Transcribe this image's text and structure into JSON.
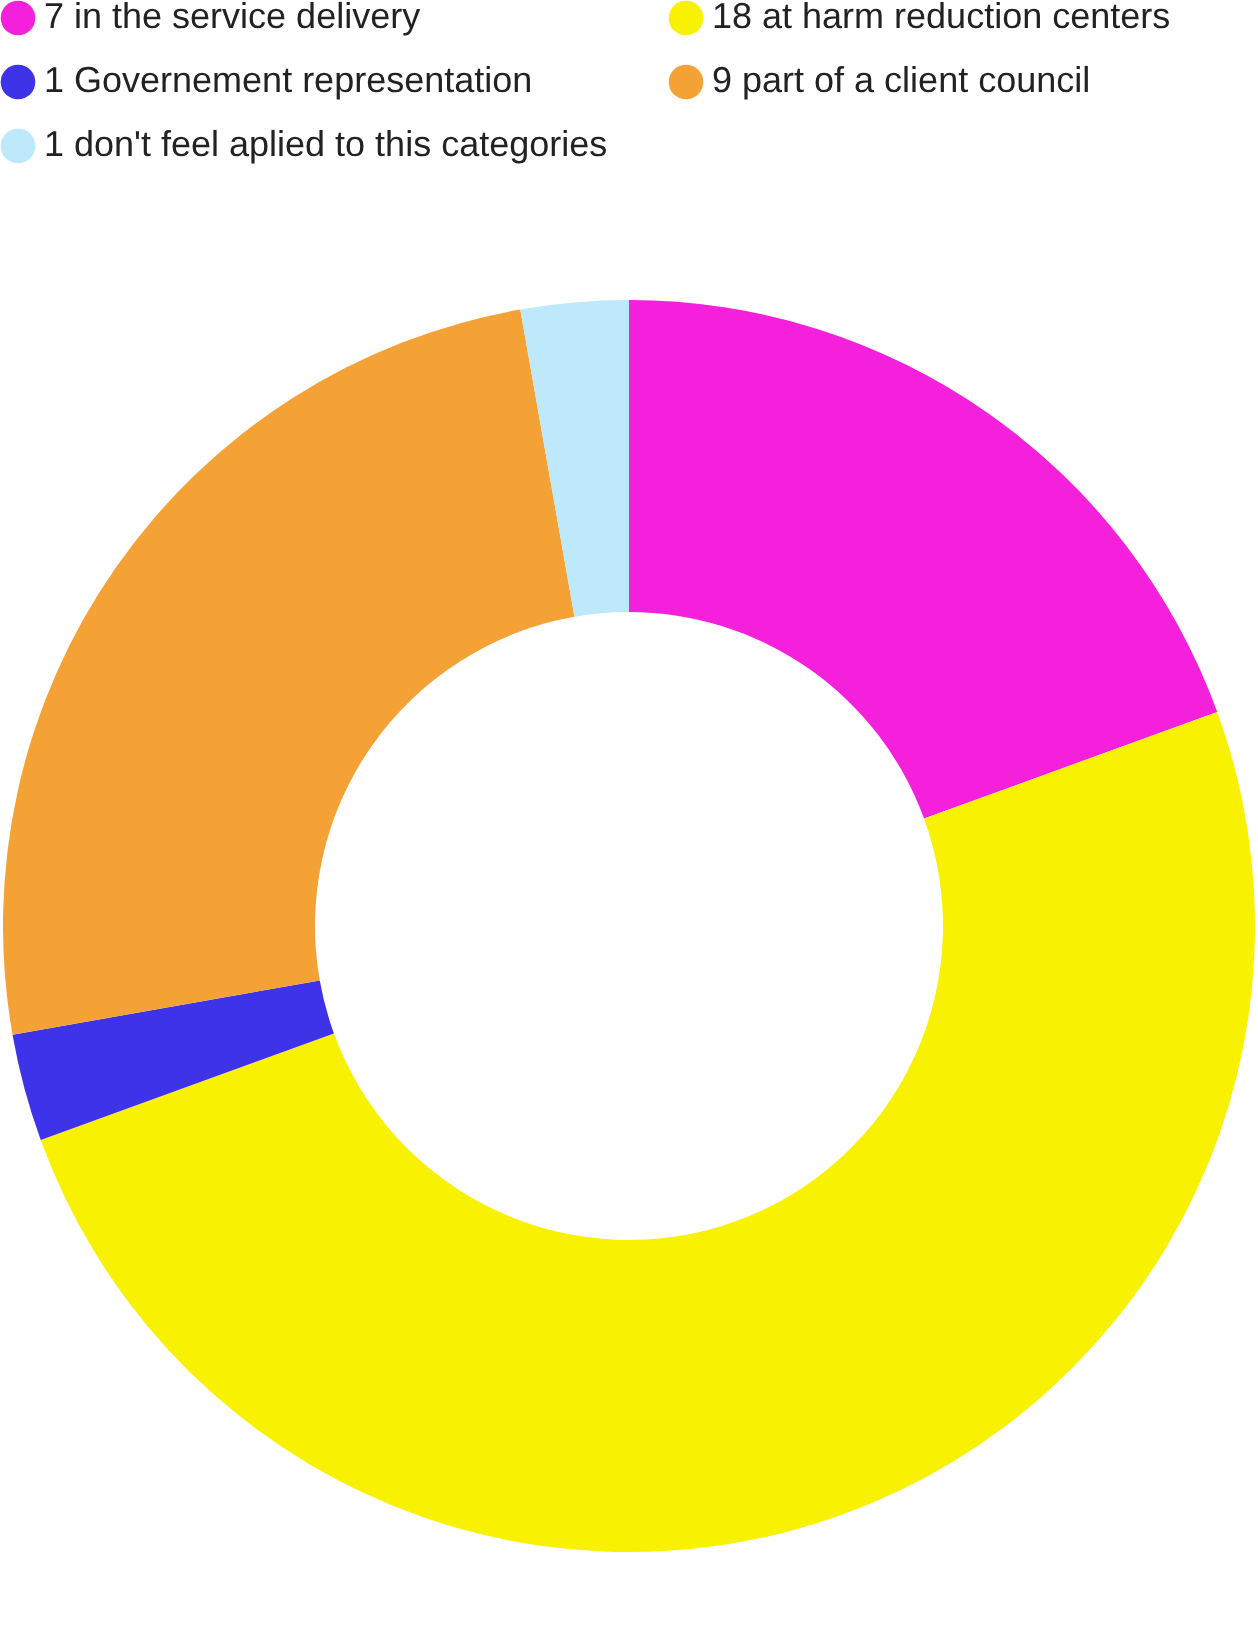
{
  "chart_data": {
    "type": "donut",
    "categories": [
      "7 in the service delivery",
      "18 at harm reduction centers",
      "1 Governement representation",
      "9 part of a client council",
      "1 don't feel aplied to this categories"
    ],
    "values": [
      7,
      18,
      1,
      9,
      1
    ],
    "colors": [
      "#f520dc",
      "#f8f200",
      "#3f33ea",
      "#f4a236",
      "#bde9fb"
    ],
    "legend": "top"
  }
}
